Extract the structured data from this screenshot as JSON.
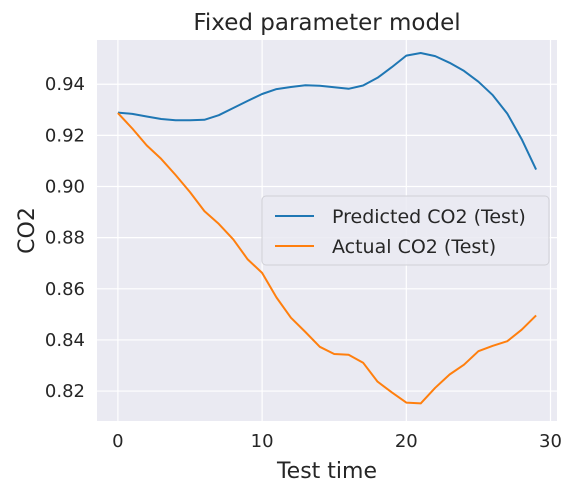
{
  "chart_data": {
    "type": "line",
    "title": "Fixed parameter model",
    "xlabel": "Test time",
    "ylabel": "CO2",
    "xlim": [
      -1.45,
      30.45
    ],
    "ylim": [
      0.8083,
      0.9573
    ],
    "x_ticks": [
      0,
      10,
      20,
      30
    ],
    "x_tick_labels": [
      "0",
      "10",
      "20",
      "30"
    ],
    "y_ticks": [
      0.82,
      0.84,
      0.86,
      0.88,
      0.9,
      0.92,
      0.94
    ],
    "y_tick_labels": [
      "0.82",
      "0.84",
      "0.86",
      "0.88",
      "0.90",
      "0.92",
      "0.94"
    ],
    "grid": true,
    "legend_position": "center-right",
    "x": [
      0,
      1,
      2,
      3,
      4,
      5,
      6,
      7,
      8,
      9,
      10,
      11,
      12,
      13,
      14,
      15,
      16,
      17,
      18,
      19,
      20,
      21,
      22,
      23,
      24,
      25,
      26,
      27,
      28,
      29
    ],
    "series": [
      {
        "name": "Predicted CO2 (Test)",
        "color": "#1f77b4",
        "values": [
          0.9289,
          0.9284,
          0.9274,
          0.9264,
          0.9259,
          0.9259,
          0.9261,
          0.9279,
          0.9307,
          0.9335,
          0.9362,
          0.9381,
          0.9389,
          0.9396,
          0.9394,
          0.9388,
          0.9382,
          0.9395,
          0.9425,
          0.9467,
          0.9512,
          0.9522,
          0.951,
          0.9484,
          0.9452,
          0.941,
          0.9357,
          0.9285,
          0.9185,
          0.9066
        ]
      },
      {
        "name": "Actual CO2 (Test)",
        "color": "#ff7f0e",
        "values": [
          0.9287,
          0.9227,
          0.9161,
          0.9108,
          0.9045,
          0.8978,
          0.8904,
          0.8854,
          0.8793,
          0.8715,
          0.8662,
          0.8566,
          0.8487,
          0.8431,
          0.8373,
          0.8345,
          0.8342,
          0.8311,
          0.8237,
          0.8195,
          0.8155,
          0.8152,
          0.8213,
          0.8265,
          0.8303,
          0.8356,
          0.8377,
          0.8395,
          0.844,
          0.8496
        ]
      }
    ]
  }
}
